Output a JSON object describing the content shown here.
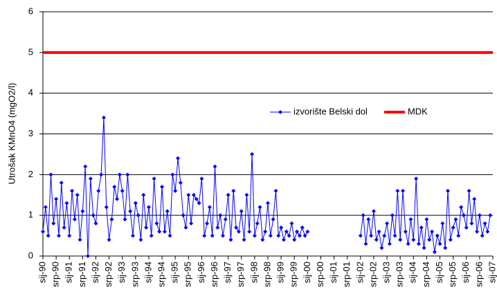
{
  "chart_data": {
    "type": "line",
    "ylabel": "Utrošak KMnO4 (mgO2/l)",
    "ylim": [
      0,
      6
    ],
    "yticks": [
      0,
      1,
      2,
      3,
      4,
      5,
      6
    ],
    "grid": true,
    "xlim": [
      1990,
      2007
    ],
    "xticks": [
      {
        "value": 1990,
        "label": "sij-90"
      },
      {
        "value": 1990.5,
        "label": "srp-90"
      },
      {
        "value": 1991,
        "label": "sij-91"
      },
      {
        "value": 1991.5,
        "label": "srp-91"
      },
      {
        "value": 1992,
        "label": "sij-92"
      },
      {
        "value": 1992.5,
        "label": "srp-92"
      },
      {
        "value": 1993,
        "label": "sij-93"
      },
      {
        "value": 1993.5,
        "label": "srp-93"
      },
      {
        "value": 1994,
        "label": "sij-94"
      },
      {
        "value": 1994.5,
        "label": "srp-94"
      },
      {
        "value": 1995,
        "label": "sij-95"
      },
      {
        "value": 1995.5,
        "label": "srp-95"
      },
      {
        "value": 1996,
        "label": "sij-96"
      },
      {
        "value": 1996.5,
        "label": "srp-96"
      },
      {
        "value": 1997,
        "label": "sij-97"
      },
      {
        "value": 1997.5,
        "label": "srp-97"
      },
      {
        "value": 1998,
        "label": "sij-98"
      },
      {
        "value": 1998.5,
        "label": "srp-98"
      },
      {
        "value": 1999,
        "label": "sij-99"
      },
      {
        "value": 1999.5,
        "label": "srp-99"
      },
      {
        "value": 2000,
        "label": "sij-00"
      },
      {
        "value": 2000.5,
        "label": "srp-00"
      },
      {
        "value": 2001,
        "label": "sij-01"
      },
      {
        "value": 2001.5,
        "label": "srp-01"
      },
      {
        "value": 2002,
        "label": "sij-02"
      },
      {
        "value": 2002.5,
        "label": "srp-02"
      },
      {
        "value": 2003,
        "label": "sij-03"
      },
      {
        "value": 2003.5,
        "label": "srp-03"
      },
      {
        "value": 2004,
        "label": "sij-04"
      },
      {
        "value": 2004.5,
        "label": "srp-04"
      },
      {
        "value": 2005,
        "label": "sij-05"
      },
      {
        "value": 2005.5,
        "label": "srp-05"
      },
      {
        "value": 2006,
        "label": "sij-06"
      },
      {
        "value": 2006.5,
        "label": "srp-06"
      },
      {
        "value": 2007,
        "label": "sij-07"
      }
    ],
    "legend": "center right",
    "series": [
      {
        "name": "izvorište Belski dol",
        "color": "#0000ff",
        "marker": "diamond",
        "x": [
          1990.0,
          1990.1,
          1990.2,
          1990.3,
          1990.4,
          1990.5,
          1990.6,
          1990.7,
          1990.8,
          1990.9,
          1991.0,
          1991.1,
          1991.2,
          1991.3,
          1991.4,
          1991.5,
          1991.6,
          1991.7,
          1991.8,
          1991.9,
          1992.0,
          1992.1,
          1992.2,
          1992.3,
          1992.4,
          1992.5,
          1992.6,
          1992.7,
          1992.8,
          1992.9,
          1993.0,
          1993.1,
          1993.2,
          1993.3,
          1993.4,
          1993.5,
          1993.6,
          1993.7,
          1993.8,
          1993.9,
          1994.0,
          1994.1,
          1994.2,
          1994.3,
          1994.4,
          1994.5,
          1994.6,
          1994.7,
          1994.8,
          1994.9,
          1995.0,
          1995.1,
          1995.2,
          1995.3,
          1995.4,
          1995.5,
          1995.6,
          1995.7,
          1995.8,
          1995.9,
          1996.0,
          1996.1,
          1996.2,
          1996.3,
          1996.4,
          1996.5,
          1996.6,
          1996.7,
          1996.8,
          1996.9,
          1997.0,
          1997.1,
          1997.2,
          1997.3,
          1997.4,
          1997.5,
          1997.6,
          1997.7,
          1997.8,
          1997.9,
          1998.0,
          1998.1,
          1998.2,
          1998.3,
          1998.4,
          1998.5,
          1998.6,
          1998.7,
          1998.8,
          1998.9,
          1999.0,
          1999.1,
          1999.2,
          1999.3,
          1999.4,
          1999.5,
          1999.6,
          1999.7,
          1999.8,
          1999.9,
          2000.0,
          2001.0,
          2002.0,
          2002.1,
          2002.2,
          2002.3,
          2002.4,
          2002.5,
          2002.6,
          2002.7,
          2002.8,
          2002.9,
          2003.0,
          2003.1,
          2003.2,
          2003.3,
          2003.4,
          2003.5,
          2003.6,
          2003.7,
          2003.8,
          2003.9,
          2004.0,
          2004.1,
          2004.2,
          2004.3,
          2004.4,
          2004.5,
          2004.6,
          2004.7,
          2004.8,
          2004.9,
          2005.0,
          2005.1,
          2005.2,
          2005.3,
          2005.4,
          2005.5,
          2005.6,
          2005.7,
          2005.8,
          2005.9,
          2006.0,
          2006.1,
          2006.2,
          2006.3,
          2006.4,
          2006.5,
          2006.6,
          2006.7,
          2006.8,
          2006.9
        ],
        "values": [
          0.6,
          1.2,
          0.5,
          2.0,
          0.8,
          1.4,
          0.5,
          1.8,
          0.7,
          1.3,
          0.5,
          1.6,
          0.9,
          1.5,
          0.4,
          1.1,
          2.2,
          0.0,
          1.9,
          1.0,
          0.8,
          1.6,
          2.0,
          3.4,
          1.2,
          0.4,
          0.9,
          1.7,
          1.4,
          2.0,
          1.6,
          0.9,
          2.0,
          1.1,
          0.5,
          1.3,
          1.0,
          0.4,
          1.5,
          0.7,
          1.2,
          0.5,
          1.9,
          0.8,
          0.6,
          1.7,
          0.6,
          1.1,
          0.5,
          2.0,
          1.6,
          2.4,
          1.8,
          1.0,
          0.7,
          1.5,
          0.8,
          1.5,
          1.4,
          1.3,
          1.9,
          0.5,
          0.8,
          1.2,
          0.5,
          2.2,
          0.7,
          1.0,
          0.5,
          0.9,
          1.5,
          0.4,
          1.6,
          0.7,
          0.6,
          1.1,
          0.4,
          1.5,
          0.6,
          2.5,
          0.5,
          0.8,
          1.2,
          0.4,
          0.6,
          1.3,
          0.5,
          0.9,
          1.6,
          0.5,
          0.7,
          0.4,
          0.6,
          0.5,
          0.8,
          0.4,
          0.6,
          0.5,
          0.7,
          0.5,
          0.6,
          null,
          0.5,
          1.0,
          0.3,
          0.9,
          0.5,
          1.1,
          0.4,
          0.6,
          0.2,
          0.5,
          0.8,
          0.3,
          1.0,
          0.5,
          1.6,
          0.4,
          1.6,
          0.6,
          0.3,
          0.9,
          0.4,
          1.9,
          0.3,
          0.7,
          0.2,
          0.9,
          0.4,
          0.6,
          0.1,
          0.5,
          0.3,
          0.8,
          0.2,
          1.6,
          0.4,
          0.7,
          0.9,
          0.5,
          1.2,
          1.0,
          0.7,
          1.6,
          0.8,
          1.4,
          0.6,
          1.0,
          0.5,
          0.8,
          0.6,
          1.0
        ]
      },
      {
        "name": "MDK",
        "color": "#ff0000",
        "x": [
          1990,
          2007
        ],
        "values": [
          5,
          5
        ]
      }
    ]
  }
}
